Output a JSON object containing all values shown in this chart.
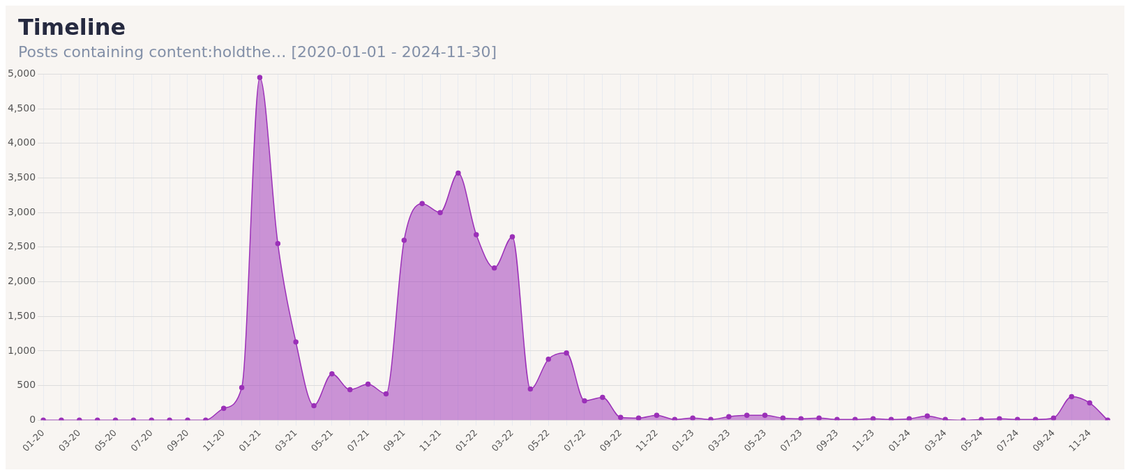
{
  "chart_data": {
    "type": "area",
    "title": "Timeline",
    "subtitle": "Posts containing content:holdthe… [2020-01-01 - 2024-11-30]",
    "categories": [
      "01-20",
      null,
      "03-20",
      null,
      "05-20",
      null,
      "07-20",
      null,
      "09-20",
      null,
      "11-20",
      null,
      "01-21",
      null,
      "03-21",
      null,
      "05-21",
      null,
      "07-21",
      null,
      "09-21",
      null,
      "11-21",
      null,
      "01-22",
      null,
      "03-22",
      null,
      "05-22",
      null,
      "07-22",
      null,
      "09-22",
      null,
      "11-22",
      null,
      "01-23",
      null,
      "03-23",
      null,
      "05-23",
      null,
      "07-23",
      null,
      "09-23",
      null,
      "11-23",
      null,
      "01-24",
      null,
      "03-24",
      null,
      "05-24",
      null,
      "07-24",
      null,
      "09-24",
      null,
      "11-24",
      null
    ],
    "series": [
      {
        "color": "#9b30b8",
        "values": [
          0,
          0,
          0,
          0,
          0,
          0,
          0,
          0,
          0,
          0,
          170,
          470,
          4950,
          2550,
          1130,
          210,
          670,
          440,
          520,
          380,
          2600,
          3130,
          3000,
          3570,
          2680,
          2200,
          2650,
          450,
          880,
          970,
          280,
          330,
          40,
          30,
          70,
          10,
          30,
          10,
          50,
          70,
          70,
          30,
          20,
          30,
          10,
          10,
          20,
          10,
          20,
          60,
          10,
          0,
          10,
          20,
          10,
          10,
          30,
          340,
          250,
          0
        ]
      }
    ],
    "ylim": [
      0,
      5000
    ],
    "yticks": [
      {
        "value": 0,
        "label": "0"
      },
      {
        "value": 500,
        "label": "500"
      },
      {
        "value": 1000,
        "label": "1,000"
      },
      {
        "value": 1500,
        "label": "1,500"
      },
      {
        "value": 2000,
        "label": "2,000"
      },
      {
        "value": 2500,
        "label": "2,500"
      },
      {
        "value": 3000,
        "label": "3,000"
      },
      {
        "value": 3500,
        "label": "3,500"
      },
      {
        "value": 4000,
        "label": "4,000"
      },
      {
        "value": 4500,
        "label": "4,500"
      },
      {
        "value": 5000,
        "label": "5,000"
      }
    ],
    "grid": true,
    "legend": false,
    "marker": "circle"
  }
}
